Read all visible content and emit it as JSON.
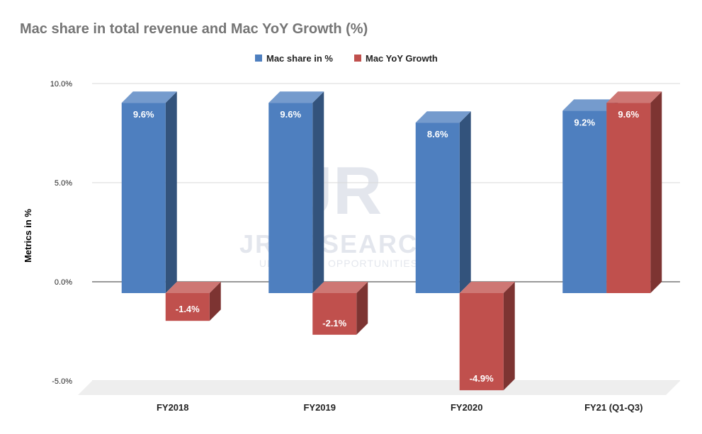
{
  "chart_data": {
    "type": "bar",
    "title": "Mac share in total revenue and Mac YoY Growth (%)",
    "xlabel": "",
    "ylabel": "Metrics in %",
    "ylim": [
      -5,
      10
    ],
    "yticks": [
      "10.0%",
      "5.0%",
      "0.0%",
      "-5.0%"
    ],
    "ytick_values": [
      10,
      5,
      0,
      -5
    ],
    "categories": [
      "FY2018",
      "FY2019",
      "FY2020",
      "FY21 (Q1-Q3)"
    ],
    "series": [
      {
        "name": "Mac share in %",
        "values": [
          9.6,
          9.6,
          8.6,
          9.2
        ],
        "labels": [
          "9.6%",
          "9.6%",
          "8.6%",
          "9.2%"
        ],
        "color": "#4e7fbf"
      },
      {
        "name": "Mac YoY Growth",
        "values": [
          -1.4,
          -2.1,
          -4.9,
          9.6
        ],
        "labels": [
          "-1.4%",
          "-2.1%",
          "-4.9%",
          "9.6%"
        ],
        "color": "#c0504d"
      }
    ],
    "grid": true,
    "legend_position": "top",
    "three_d": true,
    "watermark": "JR RESEARCH — UNLOCKING OPPORTUNITIES"
  }
}
